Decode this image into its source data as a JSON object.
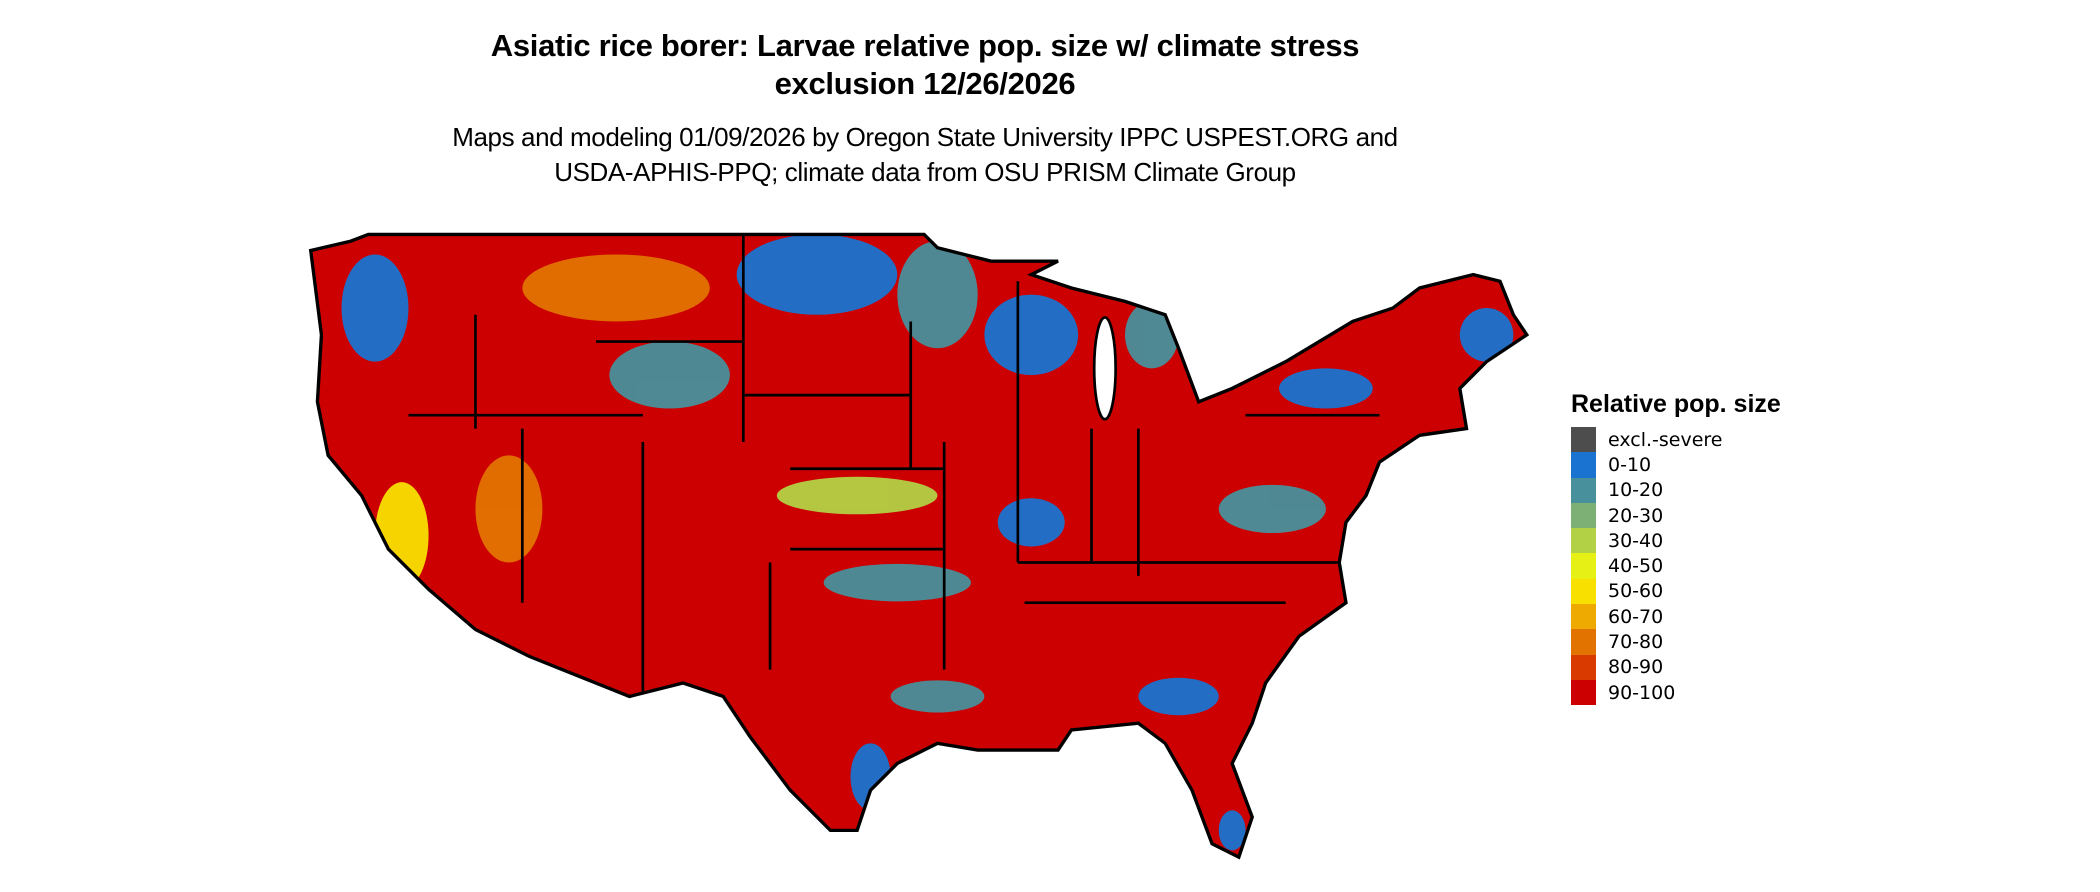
{
  "title": {
    "line1": "Asiatic rice borer: Larvae relative pop. size w/ climate stress",
    "line2": "exclusion 12/26/2026"
  },
  "subtitle": {
    "line1": "Maps and modeling 01/09/2026 by Oregon State University IPPC USPEST.ORG and",
    "line2": "USDA-APHIS-PPQ; climate data from OSU PRISM Climate Group"
  },
  "map": {
    "region": "Contiguous United States",
    "dominant_class": "90-100",
    "border_color": "#000000"
  },
  "legend": {
    "title": "Relative pop. size",
    "items": [
      {
        "label": "excl.-severe",
        "color": "#4d4d4d"
      },
      {
        "label": "0-10",
        "color": "#1a73d0"
      },
      {
        "label": "10-20",
        "color": "#48909b"
      },
      {
        "label": "20-30",
        "color": "#7db074"
      },
      {
        "label": "30-40",
        "color": "#b3d145"
      },
      {
        "label": "40-50",
        "color": "#e6f015"
      },
      {
        "label": "50-60",
        "color": "#f8e000"
      },
      {
        "label": "60-70",
        "color": "#eeaa00"
      },
      {
        "label": "70-80",
        "color": "#e37300"
      },
      {
        "label": "80-90",
        "color": "#d83a00"
      },
      {
        "label": "90-100",
        "color": "#cc0000"
      }
    ]
  }
}
